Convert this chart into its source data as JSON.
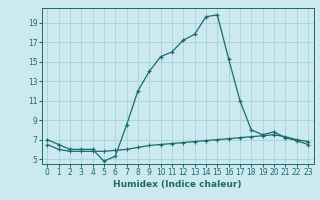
{
  "xlabel": "Humidex (Indice chaleur)",
  "ylabel": "",
  "background_color": "#cce9f0",
  "line_color": "#1a6b6b",
  "grid_color": "#aad4dc",
  "xlim": [
    -0.5,
    23.5
  ],
  "ylim": [
    4.5,
    20.5
  ],
  "xticks": [
    0,
    1,
    2,
    3,
    4,
    5,
    6,
    7,
    8,
    9,
    10,
    11,
    12,
    13,
    14,
    15,
    16,
    17,
    18,
    19,
    20,
    21,
    22,
    23
  ],
  "yticks": [
    5,
    7,
    9,
    11,
    13,
    15,
    17,
    19
  ],
  "line1_x": [
    0,
    1,
    2,
    3,
    4,
    5,
    6,
    7,
    8,
    9,
    10,
    11,
    12,
    13,
    14,
    15,
    16,
    17,
    18,
    19,
    20,
    21,
    22,
    23
  ],
  "line1_y": [
    7.0,
    6.5,
    6.0,
    6.0,
    6.0,
    4.8,
    5.3,
    8.5,
    12.0,
    14.0,
    15.5,
    16.0,
    17.2,
    17.8,
    19.6,
    19.8,
    15.3,
    11.0,
    8.0,
    7.5,
    7.8,
    7.2,
    6.9,
    6.5
  ],
  "line2_x": [
    0,
    1,
    2,
    3,
    4,
    5,
    6,
    7,
    8,
    9,
    10,
    11,
    12,
    13,
    14,
    15,
    16,
    17,
    18,
    19,
    20,
    21,
    22,
    23
  ],
  "line2_y": [
    6.5,
    6.0,
    5.8,
    5.8,
    5.8,
    5.8,
    5.9,
    6.0,
    6.2,
    6.4,
    6.5,
    6.6,
    6.7,
    6.8,
    6.9,
    7.0,
    7.1,
    7.2,
    7.3,
    7.4,
    7.5,
    7.3,
    7.0,
    6.8
  ],
  "xlabel_fontsize": 6.5,
  "tick_fontsize": 5.5
}
